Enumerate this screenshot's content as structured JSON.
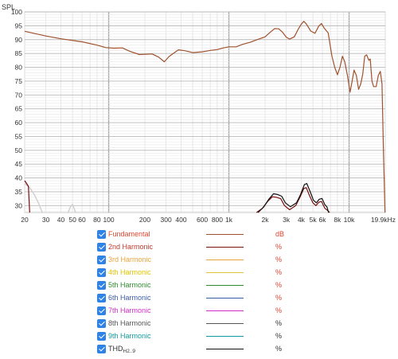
{
  "chart_data": {
    "type": "line",
    "ylabel": "SPL",
    "xscale": "log",
    "xlim": [
      20,
      20000
    ],
    "ylim": [
      27.5,
      100
    ],
    "grid": true,
    "x_ticks": [
      {
        "value": 20,
        "label": "20"
      },
      {
        "value": 30,
        "label": "30"
      },
      {
        "value": 40,
        "label": "40"
      },
      {
        "value": 50,
        "label": "50"
      },
      {
        "value": 60,
        "label": "60"
      },
      {
        "value": 80,
        "label": "80"
      },
      {
        "value": 100,
        "label": "100"
      },
      {
        "value": 200,
        "label": "200"
      },
      {
        "value": 300,
        "label": "300"
      },
      {
        "value": 400,
        "label": "400"
      },
      {
        "value": 600,
        "label": "600"
      },
      {
        "value": 800,
        "label": "800"
      },
      {
        "value": 1000,
        "label": "1k"
      },
      {
        "value": 2000,
        "label": "2k"
      },
      {
        "value": 3000,
        "label": "3k"
      },
      {
        "value": 4000,
        "label": "4k"
      },
      {
        "value": 5000,
        "label": "5k"
      },
      {
        "value": 6000,
        "label": "6k"
      },
      {
        "value": 8000,
        "label": "8k"
      },
      {
        "value": 10000,
        "label": "10k"
      },
      {
        "value": 19900,
        "label": "19.9kHz"
      }
    ],
    "y_ticks": [
      "30",
      "35",
      "40",
      "45",
      "50",
      "55",
      "60",
      "65",
      "70",
      "75",
      "80",
      "85",
      "90",
      "95",
      "100"
    ],
    "series": [
      {
        "name": "Fundamental",
        "color": "#a0522d",
        "unit": "dB",
        "unit_color": "#e0452f",
        "points": [
          [
            20,
            93
          ],
          [
            30,
            91.3
          ],
          [
            40,
            90.3
          ],
          [
            60,
            89.2
          ],
          [
            80,
            88
          ],
          [
            95,
            87.1
          ],
          [
            110,
            86.9
          ],
          [
            130,
            87
          ],
          [
            150,
            85.8
          ],
          [
            180,
            84.6
          ],
          [
            230,
            84.8
          ],
          [
            260,
            83.7
          ],
          [
            290,
            82
          ],
          [
            320,
            84
          ],
          [
            380,
            86.3
          ],
          [
            430,
            86
          ],
          [
            500,
            85.3
          ],
          [
            600,
            85.6
          ],
          [
            700,
            86.1
          ],
          [
            800,
            86.4
          ],
          [
            900,
            87
          ],
          [
            1000,
            87.4
          ],
          [
            1150,
            87.4
          ],
          [
            1300,
            88.3
          ],
          [
            1500,
            89
          ],
          [
            1700,
            89.9
          ],
          [
            2000,
            91
          ],
          [
            2200,
            92.6
          ],
          [
            2400,
            94
          ],
          [
            2600,
            93.9
          ],
          [
            2800,
            92.6
          ],
          [
            3000,
            90.9
          ],
          [
            3200,
            90.2
          ],
          [
            3500,
            91
          ],
          [
            3800,
            94
          ],
          [
            4000,
            95.6
          ],
          [
            4200,
            96.6
          ],
          [
            4400,
            95.7
          ],
          [
            4800,
            93.1
          ],
          [
            5200,
            92.3
          ],
          [
            5600,
            94.9
          ],
          [
            5900,
            95.8
          ],
          [
            6200,
            94.2
          ],
          [
            6700,
            92.4
          ],
          [
            7200,
            84
          ],
          [
            7600,
            80
          ],
          [
            8000,
            77.3
          ],
          [
            8400,
            80
          ],
          [
            8800,
            84
          ],
          [
            9200,
            82
          ],
          [
            9700,
            77
          ],
          [
            10200,
            71
          ],
          [
            10600,
            75
          ],
          [
            11000,
            79
          ],
          [
            11500,
            77
          ],
          [
            12000,
            72
          ],
          [
            12500,
            74
          ],
          [
            13000,
            77.5
          ],
          [
            13500,
            84
          ],
          [
            14000,
            84.5
          ],
          [
            14600,
            82.5
          ],
          [
            15000,
            83
          ],
          [
            15500,
            75
          ],
          [
            16000,
            73
          ],
          [
            16800,
            73
          ],
          [
            17500,
            77
          ],
          [
            18200,
            78.5
          ],
          [
            18800,
            74
          ],
          [
            19300,
            50
          ],
          [
            19900,
            27.5
          ]
        ]
      },
      {
        "name": "2nd Harmonic",
        "color": "#7a0f0f",
        "unit": "%",
        "unit_color": "#e0452f",
        "points": [
          [
            20,
            39
          ],
          [
            21.5,
            37
          ],
          [
            22,
            27.5
          ]
        ]
      },
      {
        "name": "2nd Harmonic",
        "color": "#7a0f0f",
        "unit": "%",
        "unit_color": "#e0452f",
        "points": [
          [
            1700,
            27.5
          ],
          [
            1900,
            29
          ],
          [
            2100,
            31.5
          ],
          [
            2300,
            33.2
          ],
          [
            2500,
            33
          ],
          [
            2700,
            32.5
          ],
          [
            2900,
            30
          ],
          [
            3200,
            28.5
          ],
          [
            3600,
            30
          ],
          [
            3900,
            33
          ],
          [
            4200,
            36.2
          ],
          [
            4400,
            36.5
          ],
          [
            4700,
            33.5
          ],
          [
            5000,
            31
          ],
          [
            5300,
            30
          ],
          [
            5600,
            31.2
          ],
          [
            5900,
            31.5
          ],
          [
            6300,
            29
          ],
          [
            6600,
            28.3
          ],
          [
            6900,
            27.5
          ]
        ]
      },
      {
        "name": "3rd Harmonic",
        "color": "#e8a33d",
        "unit": "%",
        "unit_color": "#e0452f",
        "points": []
      },
      {
        "name": "4th Harmonic",
        "color": "#d9c43a",
        "unit": "%",
        "unit_color": "#e0452f",
        "points": []
      },
      {
        "name": "5th Harmonic",
        "color": "#2e8b2e",
        "unit": "%",
        "unit_color": "#e0452f",
        "points": []
      },
      {
        "name": "6th Harmonic",
        "color": "#3b5aa8",
        "unit": "%",
        "unit_color": "#e0452f",
        "points": []
      },
      {
        "name": "7th Harmonic",
        "color": "#d12fc9",
        "unit": "%",
        "unit_color": "#e0452f",
        "points": []
      },
      {
        "name": "8th Harmonic",
        "color": "#555555",
        "unit": "%",
        "unit_color": "#333333",
        "points": []
      },
      {
        "name": "9th Harmonic",
        "color": "#139a9a",
        "unit": "%",
        "unit_color": "#333333",
        "points": []
      },
      {
        "name": "THD",
        "name_sub": "H2..9",
        "color": "#111111",
        "unit": "%",
        "unit_color": "#333333",
        "points": [
          [
            1750,
            27.5
          ],
          [
            1950,
            29.5
          ],
          [
            2150,
            32.3
          ],
          [
            2350,
            34.3
          ],
          [
            2550,
            34
          ],
          [
            2750,
            33.4
          ],
          [
            2950,
            31
          ],
          [
            3250,
            29.6
          ],
          [
            3650,
            31
          ],
          [
            3950,
            34
          ],
          [
            4250,
            37.6
          ],
          [
            4450,
            38
          ],
          [
            4750,
            35
          ],
          [
            5050,
            32
          ],
          [
            5350,
            31
          ],
          [
            5650,
            32.3
          ],
          [
            5950,
            32.6
          ],
          [
            6300,
            30.3
          ],
          [
            6550,
            29.5
          ],
          [
            6750,
            27.5
          ]
        ]
      }
    ],
    "faint_series": [
      {
        "color": "#cfcfcf",
        "points": [
          [
            20,
            38
          ],
          [
            22,
            36.5
          ],
          [
            24,
            34
          ],
          [
            26,
            31
          ],
          [
            28,
            27.5
          ]
        ]
      },
      {
        "color": "#cfcfcf",
        "points": [
          [
            46,
            27.5
          ],
          [
            48,
            29.5
          ],
          [
            50,
            30.5
          ],
          [
            52,
            28.5
          ],
          [
            53,
            27.5
          ]
        ]
      }
    ]
  },
  "legend": {
    "items": [
      {
        "name": "Fundamental",
        "text_color": "#e0452f",
        "line_color": "#a0522d",
        "unit": "dB",
        "unit_color": "#e0452f"
      },
      {
        "name": "2nd Harmonic",
        "text_color": "#c0392b",
        "line_color": "#7a0f0f",
        "unit": "%",
        "unit_color": "#e0452f"
      },
      {
        "name": "3rd Harmonic",
        "text_color": "#e8a33d",
        "line_color": "#e8a33d",
        "unit": "%",
        "unit_color": "#e0452f"
      },
      {
        "name": "4th Harmonic",
        "text_color": "#e0c400",
        "line_color": "#d9c43a",
        "unit": "%",
        "unit_color": "#e0452f"
      },
      {
        "name": "5th Harmonic",
        "text_color": "#2e8b2e",
        "line_color": "#2e8b2e",
        "unit": "%",
        "unit_color": "#e0452f"
      },
      {
        "name": "6th Harmonic",
        "text_color": "#3b5aa8",
        "line_color": "#3b5aa8",
        "unit": "%",
        "unit_color": "#e0452f"
      },
      {
        "name": "7th Harmonic",
        "text_color": "#d12fc9",
        "line_color": "#d12fc9",
        "unit": "%",
        "unit_color": "#e0452f"
      },
      {
        "name": "8th Harmonic",
        "text_color": "#555555",
        "line_color": "#555555",
        "unit": "%",
        "unit_color": "#333333"
      },
      {
        "name": "9th Harmonic",
        "text_color": "#139a9a",
        "line_color": "#139a9a",
        "unit": "%",
        "unit_color": "#333333"
      },
      {
        "name": "THD",
        "name_sub": "H2..9",
        "text_color": "#333333",
        "line_color": "#111111",
        "unit": "%",
        "unit_color": "#333333"
      }
    ]
  }
}
